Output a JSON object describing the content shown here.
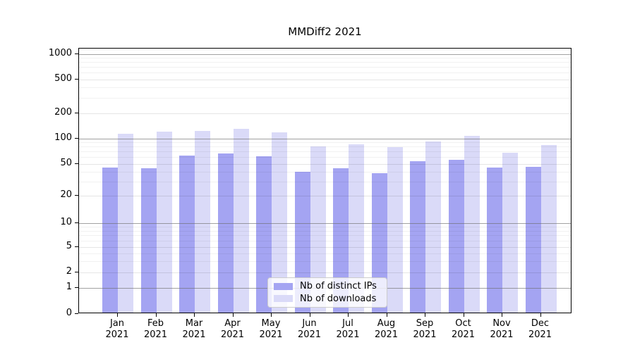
{
  "chart_data": {
    "type": "bar",
    "title": "MMDiff2 2021",
    "year_label": "2021",
    "months": [
      "Jan",
      "Feb",
      "Mar",
      "Apr",
      "May",
      "Jun",
      "Jul",
      "Aug",
      "Sep",
      "Oct",
      "Nov",
      "Dec"
    ],
    "series": [
      {
        "name": "Nb of distinct IPs",
        "color": "#a4a4f2",
        "values": [
          44,
          43,
          61,
          65,
          60,
          39,
          43,
          37,
          52,
          55,
          44,
          45
        ]
      },
      {
        "name": "Nb of downloads",
        "color": "#dadaf8",
        "values": [
          111,
          118,
          120,
          127,
          115,
          79,
          84,
          77,
          90,
          104,
          66,
          81
        ]
      }
    ],
    "y_ticks": [
      1000,
      500,
      200,
      100,
      50,
      20,
      10,
      5,
      2,
      1,
      0
    ],
    "y_minor_ticks": [
      3,
      4,
      6,
      7,
      8,
      9,
      30,
      40,
      60,
      70,
      80,
      90,
      300,
      400,
      600,
      700,
      800,
      900
    ],
    "yscale": "symlog",
    "ylim": [
      0,
      1200
    ],
    "xlabel": "",
    "ylabel": "",
    "grid": true,
    "legend_position": "lower center",
    "colors": {
      "background": "#ffffff",
      "spine": "#000000",
      "decade_gridline": "#6e6e6e",
      "legend_border": "#cccccc"
    }
  }
}
